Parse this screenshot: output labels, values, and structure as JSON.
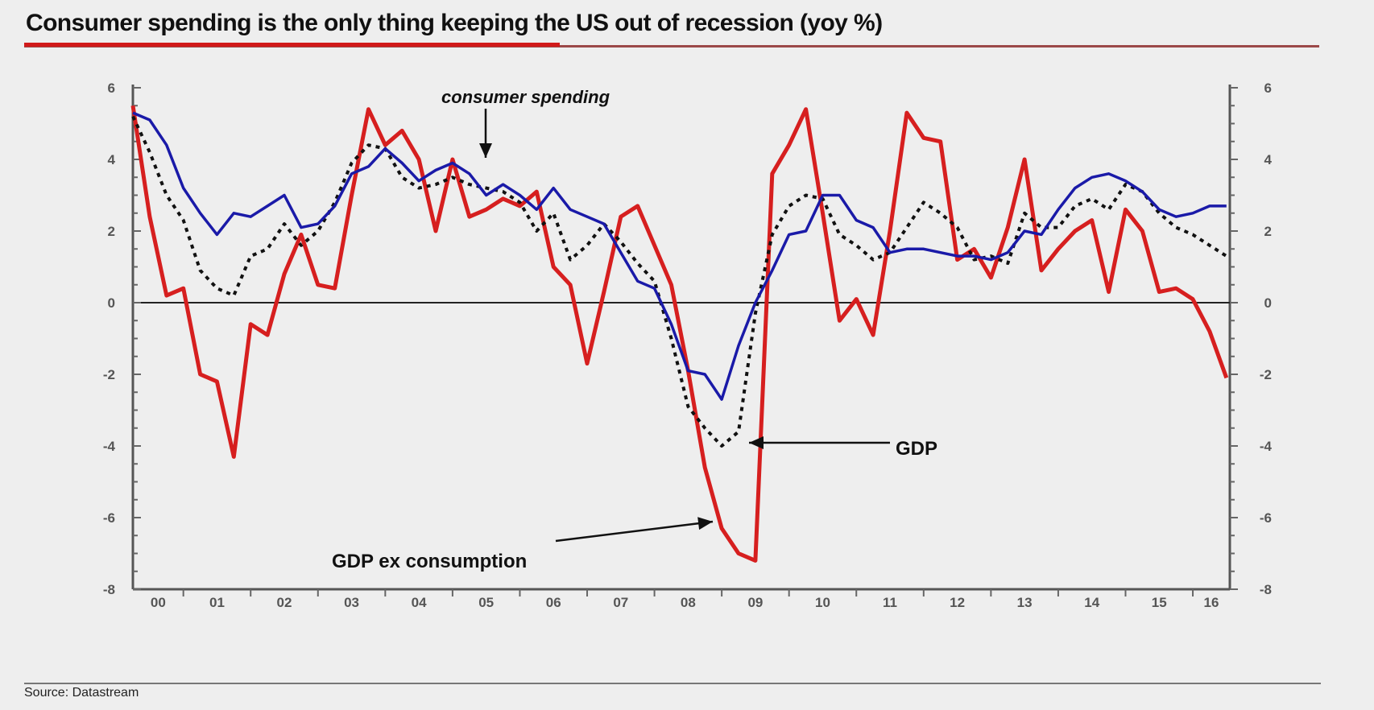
{
  "title": "Consumer spending is the only thing keeping the US out of recession (yoy %)",
  "source": "Source: Datastream",
  "colors": {
    "title_rule": "#d11a1a",
    "gdp_ex_consumption": "#d61f1f",
    "consumer_spending": "#1a1aa8",
    "gdp": "#111111",
    "background": "#eeeeee"
  },
  "chart_data": {
    "type": "line",
    "title": "Consumer spending is the only thing keeping the US out of recession (yoy %)",
    "xlabel": "",
    "ylabel": "yoy %",
    "xlim": [
      2000.25,
      2016.55
    ],
    "ylim": [
      -8,
      6
    ],
    "y_ticks": [
      6,
      4,
      2,
      0,
      -2,
      -4,
      -6,
      -8
    ],
    "y_tick_labels": [
      "6",
      "4",
      "2",
      "0",
      "-2",
      "-4",
      "-6",
      "-8"
    ],
    "x_tick_labels": [
      "00",
      "01",
      "02",
      "03",
      "04",
      "05",
      "06",
      "07",
      "08",
      "09",
      "10",
      "11",
      "12",
      "13",
      "14",
      "15",
      "16"
    ],
    "secondary_y_axis": true,
    "grid": false,
    "zero_line": true,
    "annotations": [
      {
        "text": "consumer spending",
        "points_to": "consumer_spending",
        "x": 2005.0,
        "y": 3.9
      },
      {
        "text": "GDP",
        "points_to": "gdp",
        "x": 2009.2,
        "y": -4.0
      },
      {
        "text": "GDP ex consumption",
        "points_to": "gdp_ex_consumption",
        "x": 2008.85,
        "y": -6.0
      }
    ],
    "series": [
      {
        "name": "consumer spending",
        "style": "solid",
        "x": [
          2000.25,
          2000.5,
          2000.75,
          2001.0,
          2001.25,
          2001.5,
          2001.75,
          2002.0,
          2002.25,
          2002.5,
          2002.75,
          2003.0,
          2003.25,
          2003.5,
          2003.75,
          2004.0,
          2004.25,
          2004.5,
          2004.75,
          2005.0,
          2005.25,
          2005.5,
          2005.75,
          2006.0,
          2006.25,
          2006.5,
          2006.75,
          2007.0,
          2007.25,
          2007.5,
          2007.75,
          2008.0,
          2008.25,
          2008.5,
          2008.75,
          2009.0,
          2009.25,
          2009.5,
          2009.75,
          2010.0,
          2010.25,
          2010.5,
          2010.75,
          2011.0,
          2011.25,
          2011.5,
          2011.75,
          2012.0,
          2012.25,
          2012.5,
          2012.75,
          2013.0,
          2013.25,
          2013.5,
          2013.75,
          2014.0,
          2014.25,
          2014.5,
          2014.75,
          2015.0,
          2015.25,
          2015.5,
          2015.75,
          2016.0,
          2016.25,
          2016.5
        ],
        "values": [
          5.3,
          5.1,
          4.4,
          3.2,
          2.5,
          1.9,
          2.5,
          2.4,
          2.7,
          3.0,
          2.1,
          2.2,
          2.7,
          3.6,
          3.8,
          4.3,
          3.9,
          3.4,
          3.7,
          3.9,
          3.6,
          3.0,
          3.3,
          3.0,
          2.6,
          3.2,
          2.6,
          2.4,
          2.2,
          1.4,
          0.6,
          0.4,
          -0.6,
          -1.9,
          -2.0,
          -2.7,
          -1.2,
          0.0,
          0.9,
          1.9,
          2.0,
          3.0,
          3.0,
          2.3,
          2.1,
          1.4,
          1.5,
          1.5,
          1.4,
          1.3,
          1.3,
          1.2,
          1.4,
          2.0,
          1.9,
          2.6,
          3.2,
          3.5,
          3.6,
          3.4,
          3.1,
          2.6,
          2.4,
          2.5,
          2.7,
          2.7
        ]
      },
      {
        "name": "GDP",
        "style": "dotted",
        "x": [
          2000.25,
          2000.5,
          2000.75,
          2001.0,
          2001.25,
          2001.5,
          2001.75,
          2002.0,
          2002.25,
          2002.5,
          2002.75,
          2003.0,
          2003.25,
          2003.5,
          2003.75,
          2004.0,
          2004.25,
          2004.5,
          2004.75,
          2005.0,
          2005.25,
          2005.5,
          2005.75,
          2006.0,
          2006.25,
          2006.5,
          2006.75,
          2007.0,
          2007.25,
          2007.5,
          2007.75,
          2008.0,
          2008.25,
          2008.5,
          2008.75,
          2009.0,
          2009.25,
          2009.5,
          2009.75,
          2010.0,
          2010.25,
          2010.5,
          2010.75,
          2011.0,
          2011.25,
          2011.5,
          2011.75,
          2012.0,
          2012.25,
          2012.5,
          2012.75,
          2013.0,
          2013.25,
          2013.5,
          2013.75,
          2014.0,
          2014.25,
          2014.5,
          2014.75,
          2015.0,
          2015.25,
          2015.5,
          2015.75,
          2016.0,
          2016.25,
          2016.5
        ],
        "values": [
          5.2,
          4.2,
          3.0,
          2.3,
          0.9,
          0.4,
          0.2,
          1.3,
          1.5,
          2.2,
          1.6,
          2.0,
          2.8,
          3.9,
          4.4,
          4.3,
          3.5,
          3.2,
          3.3,
          3.5,
          3.3,
          3.2,
          3.1,
          2.8,
          2.0,
          2.5,
          1.2,
          1.6,
          2.2,
          1.7,
          1.1,
          0.6,
          -1.0,
          -2.9,
          -3.5,
          -4.0,
          -3.6,
          -0.3,
          1.9,
          2.7,
          3.0,
          2.9,
          1.9,
          1.6,
          1.2,
          1.4,
          2.1,
          2.8,
          2.5,
          2.1,
          1.2,
          1.3,
          1.1,
          2.5,
          2.1,
          2.1,
          2.7,
          2.9,
          2.6,
          3.3,
          3.1,
          2.5,
          2.1,
          1.9,
          1.6,
          1.3
        ]
      },
      {
        "name": "GDP ex consumption",
        "style": "solid-thick",
        "x": [
          2000.25,
          2000.5,
          2000.75,
          2001.0,
          2001.25,
          2001.5,
          2001.75,
          2002.0,
          2002.25,
          2002.5,
          2002.75,
          2003.0,
          2003.25,
          2003.5,
          2003.75,
          2004.0,
          2004.25,
          2004.5,
          2004.75,
          2005.0,
          2005.25,
          2005.5,
          2005.75,
          2006.0,
          2006.25,
          2006.5,
          2006.75,
          2007.0,
          2007.25,
          2007.5,
          2007.75,
          2008.0,
          2008.25,
          2008.5,
          2008.75,
          2009.0,
          2009.25,
          2009.5,
          2009.75,
          2010.0,
          2010.25,
          2010.5,
          2010.75,
          2011.0,
          2011.25,
          2011.5,
          2011.75,
          2012.0,
          2012.25,
          2012.5,
          2012.75,
          2013.0,
          2013.25,
          2013.5,
          2013.75,
          2014.0,
          2014.25,
          2014.5,
          2014.75,
          2015.0,
          2015.25,
          2015.5,
          2015.75,
          2016.0,
          2016.25,
          2016.5
        ],
        "values": [
          5.5,
          2.4,
          0.2,
          0.4,
          -2.0,
          -2.2,
          -4.3,
          -0.6,
          -0.9,
          0.8,
          1.9,
          0.5,
          0.4,
          3.0,
          5.4,
          4.4,
          4.8,
          4.0,
          2.0,
          4.0,
          2.4,
          2.6,
          2.9,
          2.7,
          3.1,
          1.0,
          0.5,
          -1.7,
          0.3,
          2.4,
          2.7,
          1.6,
          0.5,
          -1.9,
          -4.6,
          -6.3,
          -7.0,
          -7.2,
          3.6,
          4.4,
          5.4,
          2.5,
          -0.5,
          0.1,
          -0.9,
          2.0,
          5.3,
          4.6,
          4.5,
          1.2,
          1.5,
          0.7,
          2.1,
          4.0,
          0.9,
          1.5,
          2.0,
          2.3,
          0.3,
          2.6,
          2.0,
          0.3,
          0.4,
          0.1,
          -0.8,
          -2.1
        ]
      }
    ]
  }
}
